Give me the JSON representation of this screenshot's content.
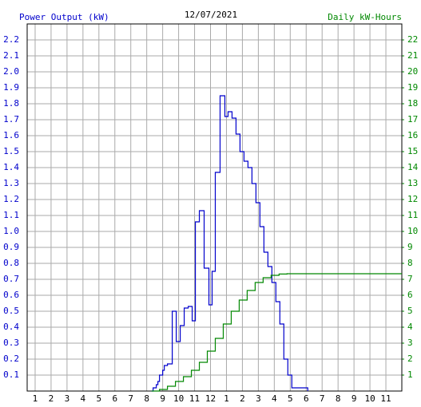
{
  "chart_data": {
    "type": "line",
    "title": "12/07/2021",
    "y_label": "Power Output (kW)",
    "y2_label": "Daily kW-Hours",
    "step": true,
    "grid": true,
    "xlim": [
      0.5,
      24
    ],
    "xticks": [
      1,
      2,
      3,
      4,
      5,
      6,
      7,
      8,
      9,
      10,
      11,
      12,
      {
        "value": 13,
        "label": "1"
      },
      {
        "value": 14,
        "label": "2"
      },
      {
        "value": 15,
        "label": "3"
      },
      {
        "value": 16,
        "label": "4"
      },
      {
        "value": 17,
        "label": "5"
      },
      {
        "value": 18,
        "label": "6"
      },
      {
        "value": 19,
        "label": "7"
      },
      {
        "value": 20,
        "label": "8"
      },
      {
        "value": 21,
        "label": "9"
      },
      {
        "value": 22,
        "label": "10"
      },
      {
        "value": 23,
        "label": "11"
      }
    ],
    "ylim": [
      0,
      2.3
    ],
    "yticks": [
      0.1,
      0.2,
      0.3,
      0.4,
      0.5,
      0.6,
      0.7,
      0.8,
      0.9,
      {
        "value": 1,
        "label": "1.0"
      },
      1.1,
      1.2,
      1.3,
      1.4,
      1.5,
      1.6,
      1.7,
      1.8,
      1.9,
      {
        "value": 2,
        "label": "2.0"
      },
      2.1,
      2.2
    ],
    "y2lim": [
      0,
      23
    ],
    "y2ticks": [
      1,
      2,
      3,
      4,
      5,
      6,
      7,
      8,
      9,
      10,
      11,
      12,
      13,
      14,
      15,
      16,
      17,
      18,
      19,
      20,
      21,
      22
    ],
    "series": [
      {
        "name": "Power Output",
        "color": "#0000cc",
        "x": [
          8.3,
          8.4,
          8.6,
          8.7,
          8.8,
          9.0,
          9.1,
          9.3,
          9.6,
          9.85,
          10.1,
          10.35,
          10.6,
          10.85,
          11.05,
          11.3,
          11.6,
          11.9,
          12.1,
          12.3,
          12.6,
          12.9,
          13.1,
          13.35,
          13.6,
          13.85,
          14.1,
          14.35,
          14.6,
          14.85,
          15.1,
          15.35,
          15.6,
          15.85,
          16.1,
          16.35,
          16.6,
          16.85,
          17.1,
          18.1
        ],
        "values": [
          0,
          0.02,
          0.04,
          0.06,
          0.1,
          0.13,
          0.16,
          0.17,
          0.5,
          0.31,
          0.41,
          0.52,
          0.53,
          0.44,
          1.06,
          1.13,
          0.77,
          0.54,
          0.75,
          1.37,
          1.85,
          1.72,
          1.75,
          1.71,
          1.61,
          1.5,
          1.44,
          1.4,
          1.3,
          1.18,
          1.03,
          0.87,
          0.78,
          0.68,
          0.56,
          0.42,
          0.2,
          0.1,
          0.02,
          0
        ]
      },
      {
        "name": "Daily kW-Hours",
        "color": "#008800",
        "axis": "y2",
        "x": [
          8.3,
          8.8,
          9.3,
          9.8,
          10.3,
          10.8,
          11.3,
          11.8,
          12.3,
          12.8,
          13.3,
          13.8,
          14.3,
          14.8,
          15.3,
          15.8,
          16.3,
          16.8,
          24
        ],
        "values": [
          0,
          0.1,
          0.3,
          0.6,
          0.9,
          1.3,
          1.8,
          2.5,
          3.3,
          4.2,
          5.0,
          5.7,
          6.3,
          6.8,
          7.1,
          7.25,
          7.33,
          7.35,
          7.35
        ]
      }
    ]
  }
}
